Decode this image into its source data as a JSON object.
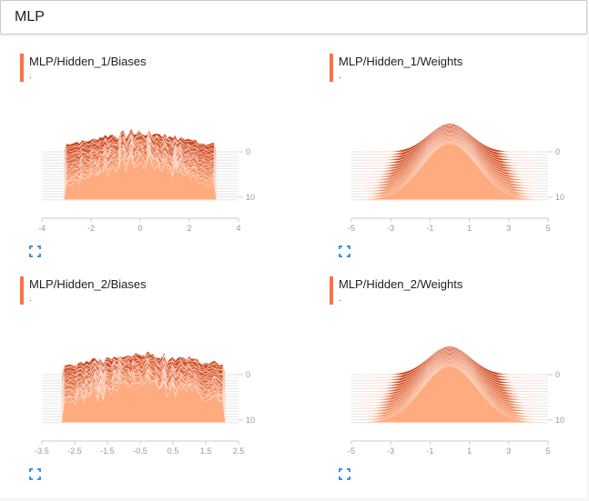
{
  "search": {
    "value": "MLP",
    "placeholder": ""
  },
  "colors": {
    "accent": "#ff7043",
    "ridge_light": "#ffab80",
    "ridge_dark": "#c8421c"
  },
  "icons": {
    "expand": "expand-icon"
  },
  "charts": [
    {
      "title": "MLP/Hidden_1/Biases",
      "subtitle": ".",
      "chart_data": {
        "type": "histogram",
        "distribution": "noisy",
        "x_ticks": [
          "-4",
          "-2",
          "0",
          "2",
          "4"
        ],
        "xlim": [
          -4,
          4
        ],
        "data_xlim": [
          -3.1,
          3.1
        ],
        "step_ticks": [
          "0",
          "10"
        ],
        "steps": 18,
        "peak_x": 0
      }
    },
    {
      "title": "MLP/Hidden_1/Weights",
      "subtitle": ".",
      "chart_data": {
        "type": "histogram",
        "distribution": "gaussian",
        "x_ticks": [
          "-5",
          "-3",
          "-1",
          "1",
          "3",
          "5"
        ],
        "xlim": [
          -5,
          5
        ],
        "data_xlim": [
          -4.5,
          4.5
        ],
        "step_ticks": [
          "0",
          "10"
        ],
        "steps": 18,
        "peak_x": 0
      }
    },
    {
      "title": "MLP/Hidden_2/Biases",
      "subtitle": ".",
      "chart_data": {
        "type": "histogram",
        "distribution": "noisy",
        "x_ticks": [
          "-3.5",
          "-2.5",
          "-1.5",
          "-0.5",
          "0.5",
          "1.5",
          "2.5"
        ],
        "xlim": [
          -3.5,
          2.5
        ],
        "data_xlim": [
          -2.9,
          2.1
        ],
        "step_ticks": [
          "0",
          "10"
        ],
        "steps": 18,
        "peak_x": -0.3
      }
    },
    {
      "title": "MLP/Hidden_2/Weights",
      "subtitle": ".",
      "chart_data": {
        "type": "histogram",
        "distribution": "gaussian",
        "x_ticks": [
          "-5",
          "-3",
          "-1",
          "1",
          "3",
          "5"
        ],
        "xlim": [
          -5,
          5
        ],
        "data_xlim": [
          -4.5,
          4.5
        ],
        "step_ticks": [
          "0",
          "10"
        ],
        "steps": 18,
        "peak_x": 0
      }
    }
  ]
}
